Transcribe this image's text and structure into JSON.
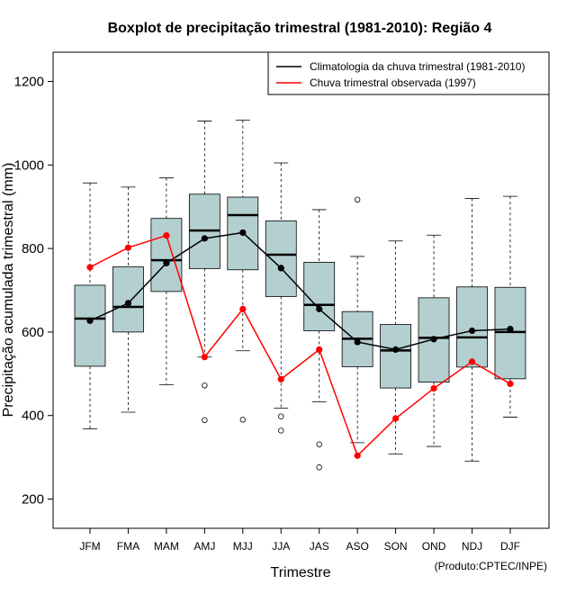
{
  "chart_data": {
    "type": "boxplot",
    "title": "Boxplot de precipitação trimestral (1981-2010): Região 4",
    "xlabel": "Trimestre",
    "ylabel": "Precipitação acumulada trimestral (mm)",
    "credit": "(Produto:CPTEC/INPE)",
    "ylim": [
      130,
      1270
    ],
    "yticks": [
      200,
      400,
      600,
      800,
      1000,
      1200
    ],
    "categories": [
      "JFM",
      "FMA",
      "MAM",
      "AMJ",
      "MJJ",
      "JJA",
      "JAS",
      "ASO",
      "SON",
      "OND",
      "NDJ",
      "DJF"
    ],
    "box_fill": "#b4cfd0",
    "boxes": [
      {
        "min": 368,
        "q1": 518,
        "median": 632,
        "q3": 712,
        "max": 957,
        "outliers": []
      },
      {
        "min": 408,
        "q1": 600,
        "median": 660,
        "q3": 756,
        "max": 947,
        "outliers": []
      },
      {
        "min": 474,
        "q1": 697,
        "median": 772,
        "q3": 872,
        "max": 969,
        "outliers": []
      },
      {
        "min": 540,
        "q1": 752,
        "median": 843,
        "q3": 930,
        "max": 1105,
        "outliers": [
          472,
          389
        ]
      },
      {
        "min": 555,
        "q1": 749,
        "median": 880,
        "q3": 923,
        "max": 1107,
        "outliers": [
          390
        ]
      },
      {
        "min": 418,
        "q1": 685,
        "median": 785,
        "q3": 866,
        "max": 1005,
        "outliers": [
          398,
          364
        ]
      },
      {
        "min": 433,
        "q1": 603,
        "median": 665,
        "q3": 767,
        "max": 893,
        "outliers": [
          331,
          276
        ]
      },
      {
        "min": 335,
        "q1": 517,
        "median": 584,
        "q3": 649,
        "max": 781,
        "outliers": [
          917
        ]
      },
      {
        "min": 308,
        "q1": 466,
        "median": 556,
        "q3": 618,
        "max": 818,
        "outliers": []
      },
      {
        "min": 326,
        "q1": 480,
        "median": 586,
        "q3": 682,
        "max": 832,
        "outliers": []
      },
      {
        "min": 291,
        "q1": 516,
        "median": 587,
        "q3": 708,
        "max": 920,
        "outliers": []
      },
      {
        "min": 396,
        "q1": 488,
        "median": 600,
        "q3": 707,
        "max": 925,
        "outliers": []
      }
    ],
    "series": [
      {
        "name": "Climatologia da chuva trimestral (1981-2010)",
        "color": "#000000",
        "values": [
          627,
          669,
          765,
          824,
          838,
          753,
          655,
          576,
          558,
          583,
          603,
          607
        ]
      },
      {
        "name": "Chuva trimestral observada (1997)",
        "color": "#ff0000",
        "values": [
          755,
          802,
          831,
          540,
          655,
          487,
          558,
          304,
          393,
          465,
          529,
          476
        ]
      }
    ],
    "legend_position": "top-right"
  }
}
